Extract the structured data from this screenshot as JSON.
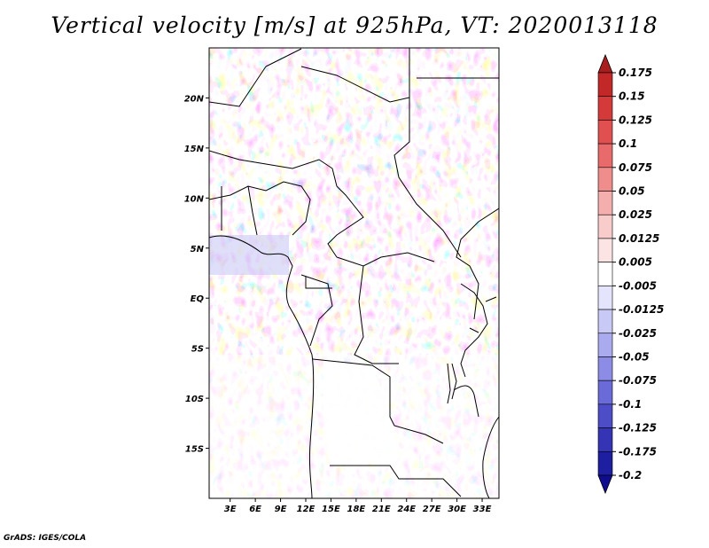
{
  "title": "Vertical velocity [m/s] at 925hPa, VT: 2020013118",
  "credit": "GrADS: IGES/COLA",
  "map": {
    "lat_labels": [
      "20N",
      "15N",
      "10N",
      "5N",
      "EQ",
      "5S",
      "10S",
      "15S"
    ],
    "lat_values": [
      20,
      15,
      10,
      5,
      0,
      -5,
      -10,
      -15
    ],
    "lon_labels": [
      "3E",
      "6E",
      "9E",
      "12E",
      "15E",
      "18E",
      "21E",
      "24E",
      "27E",
      "30E",
      "33E"
    ],
    "lon_values": [
      3,
      6,
      9,
      12,
      15,
      18,
      21,
      24,
      27,
      30,
      33
    ],
    "lon_range": [
      0.5,
      35
    ],
    "lat_range": [
      -20,
      25
    ]
  },
  "colorbar": {
    "labels": [
      "0.175",
      "0.15",
      "0.125",
      "0.1",
      "0.075",
      "0.05",
      "0.025",
      "0.0125",
      "0.005",
      "-0.005",
      "-0.0125",
      "-0.025",
      "-0.05",
      "-0.075",
      "-0.1",
      "-0.125",
      "-0.175",
      "-0.2"
    ],
    "colors": [
      "#a81e1e",
      "#c32828",
      "#d53a3a",
      "#e05050",
      "#e86a6a",
      "#ef8c8c",
      "#f5aeae",
      "#f9cccc",
      "#fce4e4",
      "#ffffff",
      "#e4e4fc",
      "#c9c9f5",
      "#aaaaef",
      "#8c8ce6",
      "#6a6ad8",
      "#4d4dc8",
      "#3434b4",
      "#1e1ea0",
      "#100c90"
    ]
  }
}
